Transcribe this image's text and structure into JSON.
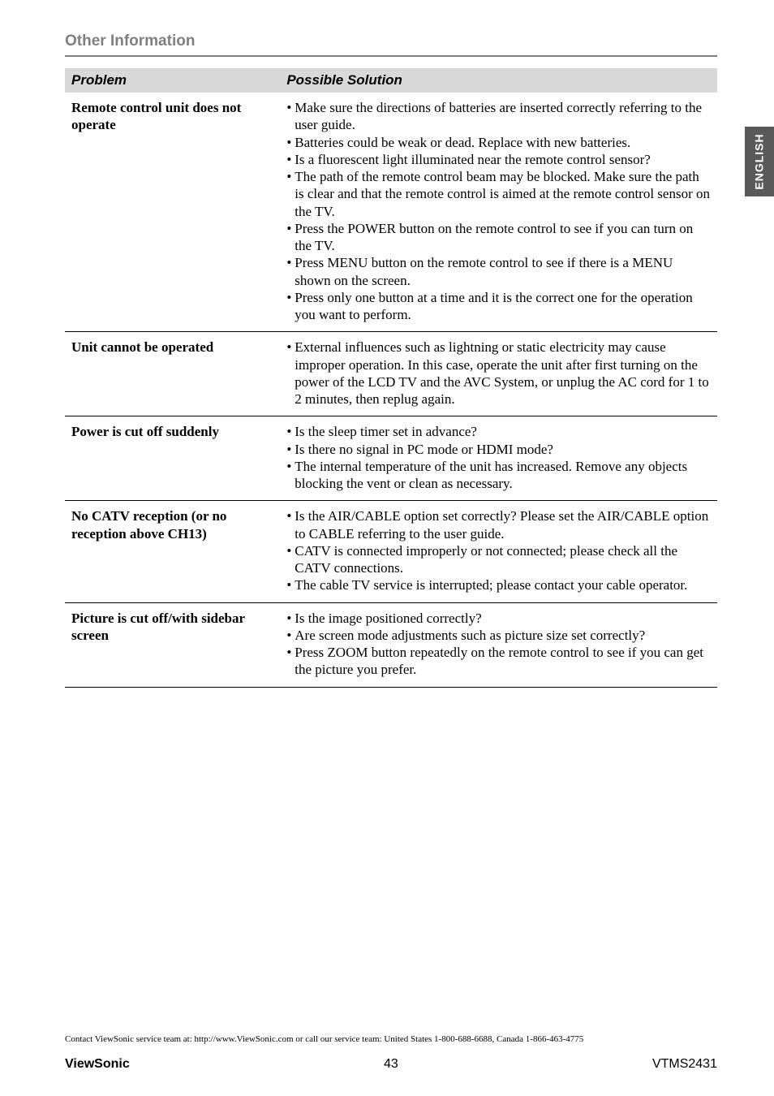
{
  "section_title": "Other Information",
  "side_tab": "ENGLISH",
  "headers": {
    "problem": "Problem",
    "solution": "Possible Solution"
  },
  "rows": [
    {
      "problem": "Remote control unit does not operate",
      "bullets": [
        {
          "text": "Make sure the directions of batteries are inserted correctly referring to the user guide.",
          "continuation_indent": true
        },
        {
          "text": "Batteries could be weak or dead. Replace with new batteries."
        },
        {
          "text": "Is a fluorescent light illuminated near the remote control sensor?",
          "continuation_indent": true
        },
        {
          "text": "The path of the remote control beam may be blocked. Make sure the path is clear and that the remote control is aimed at the remote control sensor on the TV.",
          "continuation_indent": true
        },
        {
          "text": "Press the POWER button on the remote control to see if you can turn on the TV.",
          "continuation_indent": true
        },
        {
          "text": "Press MENU button on the remote control to see if there is a MENU shown on the screen.",
          "continuation_indent": true
        },
        {
          "text": "Press only one button at a time and it is the correct one for the operation you want to perform.",
          "continuation_indent": true
        }
      ]
    },
    {
      "problem": "Unit cannot be operated",
      "bullets": [
        {
          "text": "External influences such as lightning or static electricity may cause improper operation. In this case, operate the unit after first turning on the power of the LCD TV and the AVC System, or unplug the AC cord for 1 to 2 minutes, then replug again.",
          "continuation_indent": true
        }
      ]
    },
    {
      "problem": "Power is cut off suddenly",
      "bullets": [
        {
          "text": "Is the sleep timer set in advance?"
        },
        {
          "text": "Is there no signal in PC mode or HDMI mode?"
        },
        {
          "text": "The internal temperature of the unit has increased. Remove any objects blocking the vent or clean as necessary.",
          "continuation_indent": true
        }
      ]
    },
    {
      "problem": "No CATV reception (or no reception above CH13)",
      "bullets": [
        {
          "text": "Is the AIR/CABLE option set correctly? Please set the AIR/CABLE option to CABLE referring to the user guide.",
          "continuation_indent": true
        },
        {
          "text": "CATV is connected improperly or not connected; please check all the CATV connections.",
          "continuation_indent": true
        },
        {
          "text": "The cable TV service is interrupted; please contact your cable operator.",
          "continuation_indent": true
        }
      ]
    },
    {
      "problem": "Picture is cut off/with sidebar screen",
      "bullets": [
        {
          "text": "Is the image positioned correctly?"
        },
        {
          "text": "Are screen mode adjustments such as picture size set correctly?",
          "continuation_indent": true
        },
        {
          "text": "Press ZOOM button repeatedly on the remote control to see if you can get the picture you prefer.",
          "continuation_indent": true
        }
      ]
    }
  ],
  "contact_line": "Contact ViewSonic service team at: http://www.ViewSonic.com or call our service team: United States 1-800-688-6688, Canada 1-866-463-4775",
  "footer": {
    "brand": "ViewSonic",
    "page": "43",
    "model": "VTMS2431"
  },
  "colors": {
    "header_bg": "#d9d9d9",
    "title_gray": "#808080",
    "tab_bg": "#595959",
    "tab_text": "#ffffff",
    "body_bg": "#ffffff",
    "text": "#000000"
  }
}
